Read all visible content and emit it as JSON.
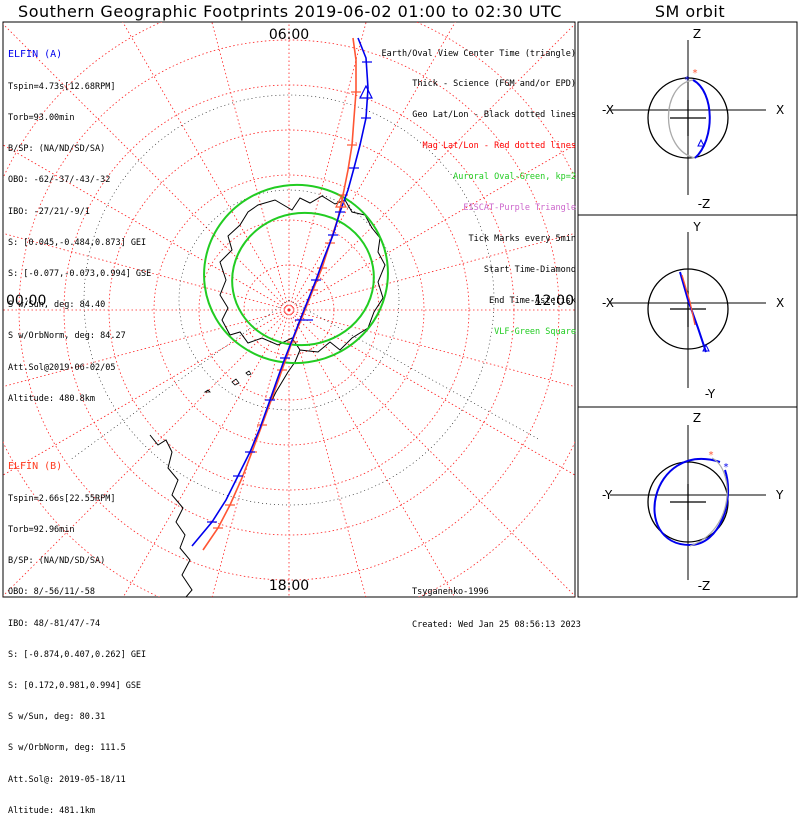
{
  "title": "Southern Geographic Footprints 2019-06-02 01:00 to 02:30 UTC",
  "sm_title": "SM orbit",
  "hour_labels": {
    "top": "06:00",
    "left": "00:00",
    "right": "12:00",
    "bottom": "18:00"
  },
  "elfin_a": {
    "header": "ELFIN (A)",
    "lines": [
      "Tspin=4.73s[12.68RPM]",
      "Torb=93.00min",
      "B/SP: (NA/ND/SD/SA)",
      "OBO: -62/-37/-43/-32",
      "IBO: -27/21/-9/1",
      "S: [0.045,-0.484,0.873] GEI",
      "S: [-0.077,-0.073,0.994] GSE",
      "S w/Sun, deg: 84.40",
      "S w/OrbNorm, deg: 84.27",
      "Att.Sol@2019-06-02/05",
      "Altitude: 480.8km"
    ]
  },
  "elfin_b": {
    "header": "ELFIN (B)",
    "lines": [
      "Tspin=2.66s[22.55RPM]",
      "Torb=92.96min",
      "B/SP: (NA/ND/SD/SA)",
      "OBO: 8/-56/11/-58",
      "IBO: 48/-81/47/-74",
      "S: [-0.874,0.407,0.262] GEI",
      "S: [0.172,0.981,0.994] GSE",
      "S w/Sun, deg: 80.31",
      "S w/OrbNorm, deg: 111.5",
      "Att.Sol@: 2019-05-18/11",
      "Altitude: 481.1km"
    ]
  },
  "legend": [
    {
      "text": "Earth/Oval View Center Time (triangle)",
      "color": "#000000"
    },
    {
      "text": "Thick - Science (FGM and/or EPD)",
      "color": "#000000"
    },
    {
      "text": "Geo Lat/Lon - Black dotted lines",
      "color": "#000000"
    },
    {
      "text": "Mag Lat/Lon - Red dotted lines",
      "color": "#ff0000"
    },
    {
      "text": "Auroral Oval-Green, kp=2",
      "color": "#22cc22"
    },
    {
      "text": "EISCAT-Purple Triangle",
      "color": "#cc66cc"
    },
    {
      "text": "Tick Marks every 5min",
      "color": "#000000"
    },
    {
      "text": "Start Time-Diamond",
      "color": "#000000"
    },
    {
      "text": "End Time-Asterisk",
      "color": "#000000"
    },
    {
      "text": "VLF-Green Square",
      "color": "#22cc22"
    }
  ],
  "credits": {
    "model": "Tsyganenko-1996",
    "created": "Created: Wed Jan 25 08:56:13 2023"
  },
  "sm_panels": [
    {
      "top": "Z",
      "bottom": "-Z",
      "left": "-X",
      "right": "X"
    },
    {
      "top": "Y",
      "bottom": "-Y",
      "left": "-X",
      "right": "X"
    },
    {
      "top": "Z",
      "bottom": "-Z",
      "left": "-Y",
      "right": "Y"
    }
  ],
  "colors": {
    "elfin_a": "#0000ee",
    "elfin_b": "#ff5533",
    "oval": "#22cc22",
    "mag_grid": "#ff2020"
  }
}
